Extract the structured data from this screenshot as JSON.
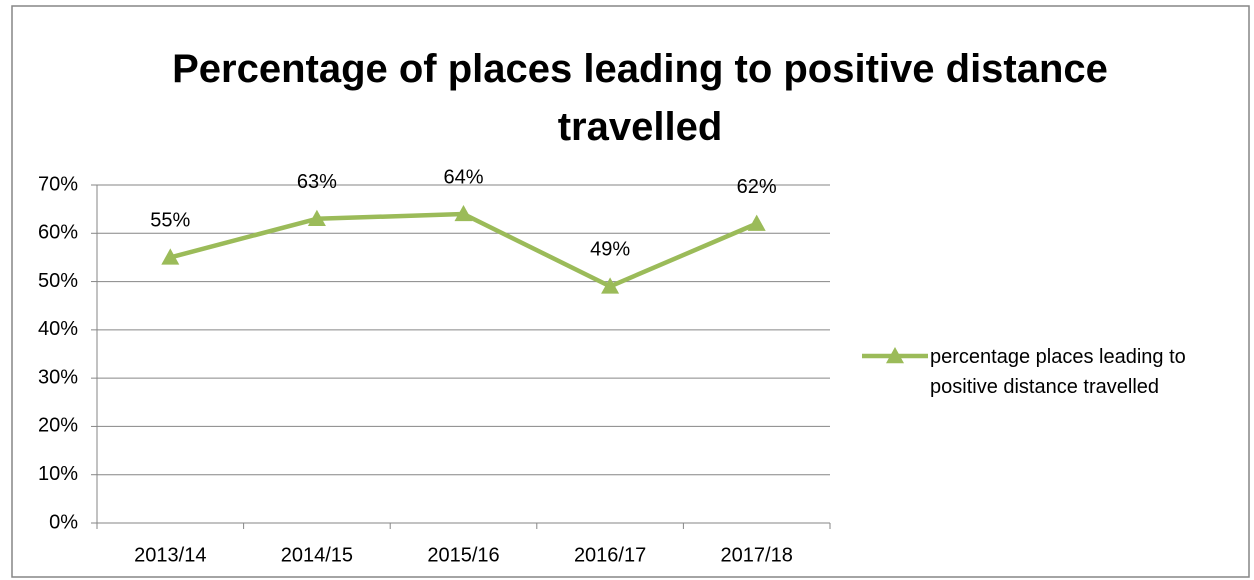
{
  "chart_data": {
    "type": "line",
    "title": "Percentage of places leading to positive distance travelled",
    "categories": [
      "2013/14",
      "2014/15",
      "2015/16",
      "2016/17",
      "2017/18"
    ],
    "series": [
      {
        "name": "percentage places leading to positive distance travelled",
        "color": "#9bbb59",
        "values": [
          55,
          63,
          64,
          49,
          62
        ],
        "value_labels": [
          "55%",
          "63%",
          "64%",
          "49%",
          "62%"
        ]
      }
    ],
    "ylim": [
      0,
      70
    ],
    "yticks": [
      {
        "value": 0,
        "label": "0%"
      },
      {
        "value": 10,
        "label": "10%"
      },
      {
        "value": 20,
        "label": "20%"
      },
      {
        "value": 30,
        "label": "30%"
      },
      {
        "value": 40,
        "label": "40%"
      },
      {
        "value": 50,
        "label": "50%"
      },
      {
        "value": 60,
        "label": "60%"
      },
      {
        "value": 70,
        "label": "70%"
      }
    ],
    "grid": true,
    "legend": "right"
  }
}
